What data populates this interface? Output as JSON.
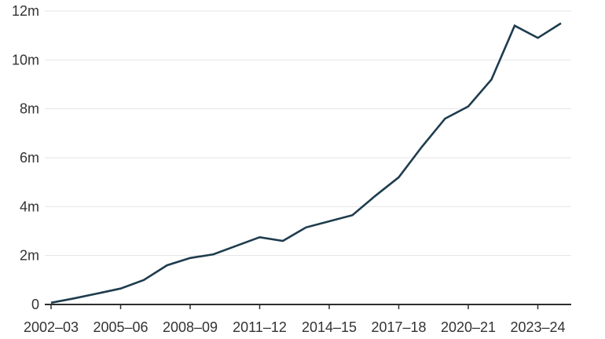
{
  "chart": {
    "background_color": "#ffffff",
    "line_color": "#1e3c4e",
    "axis_color": "#2e2e2e",
    "grid_color": "#e4e4e4",
    "text_color": "#333333"
  },
  "chart_data": {
    "type": "line",
    "title": "",
    "xlabel": "",
    "ylabel": "",
    "unit": "m",
    "grid": true,
    "legend_position": "none",
    "ylim": [
      0,
      12
    ],
    "yticks": [
      0,
      2,
      4,
      6,
      8,
      10,
      12
    ],
    "ytick_labels": [
      "0",
      "2m",
      "4m",
      "6m",
      "8m",
      "10m",
      "12m"
    ],
    "x": [
      "2002–03",
      "2003–04",
      "2004–05",
      "2005–06",
      "2006–07",
      "2007–08",
      "2008–09",
      "2009–10",
      "2010–11",
      "2011–12",
      "2012–13",
      "2013–14",
      "2014–15",
      "2015–16",
      "2016–17",
      "2017–18",
      "2018–19",
      "2019–20",
      "2020–21",
      "2021–22",
      "2022–23",
      "2023–24",
      "2024–25"
    ],
    "values": [
      0.07,
      0.25,
      0.45,
      0.65,
      1.0,
      1.6,
      1.9,
      2.05,
      2.4,
      2.75,
      2.6,
      3.15,
      3.4,
      3.65,
      4.45,
      5.2,
      6.45,
      7.6,
      8.1,
      9.2,
      11.4,
      10.9,
      11.5
    ],
    "xtick_indices": [
      0,
      3,
      6,
      9,
      12,
      15,
      18,
      21
    ],
    "xtick_labels": [
      "2002–03",
      "2005–06",
      "2008–09",
      "2011–12",
      "2014–15",
      "2017–18",
      "2020–21",
      "2023–24"
    ]
  }
}
